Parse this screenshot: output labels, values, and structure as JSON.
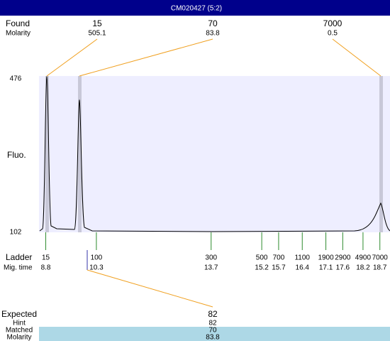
{
  "chart_data": {
    "type": "electropherogram",
    "title": "CM020427 (5:2)",
    "found": {
      "label": "Found",
      "sublabel": "Molarity",
      "peaks": [
        {
          "size": 15,
          "molarity": 505.1
        },
        {
          "size": 70,
          "molarity": 83.8
        },
        {
          "size": 7000,
          "molarity": 0.5
        }
      ]
    },
    "ylabel": "Fluo.",
    "ylim": [
      102,
      476
    ],
    "yticks": [
      102,
      476
    ],
    "ladder": {
      "label": "Ladder",
      "sublabel": "Mig. time",
      "sizes": [
        15,
        100,
        300,
        500,
        700,
        1100,
        1900,
        2900,
        4900,
        7000
      ],
      "times": [
        8.8,
        10.3,
        13.7,
        15.2,
        15.7,
        16.4,
        17.1,
        17.6,
        18.2,
        18.7
      ]
    },
    "xlim": [
      8.6,
      19.0
    ],
    "expected": {
      "label": "Expected",
      "value": 82,
      "rows": [
        {
          "label": "Hint",
          "value": 82
        },
        {
          "label": "Matched",
          "value": 70
        },
        {
          "label": "Molarity",
          "value": 83.8
        }
      ]
    }
  }
}
